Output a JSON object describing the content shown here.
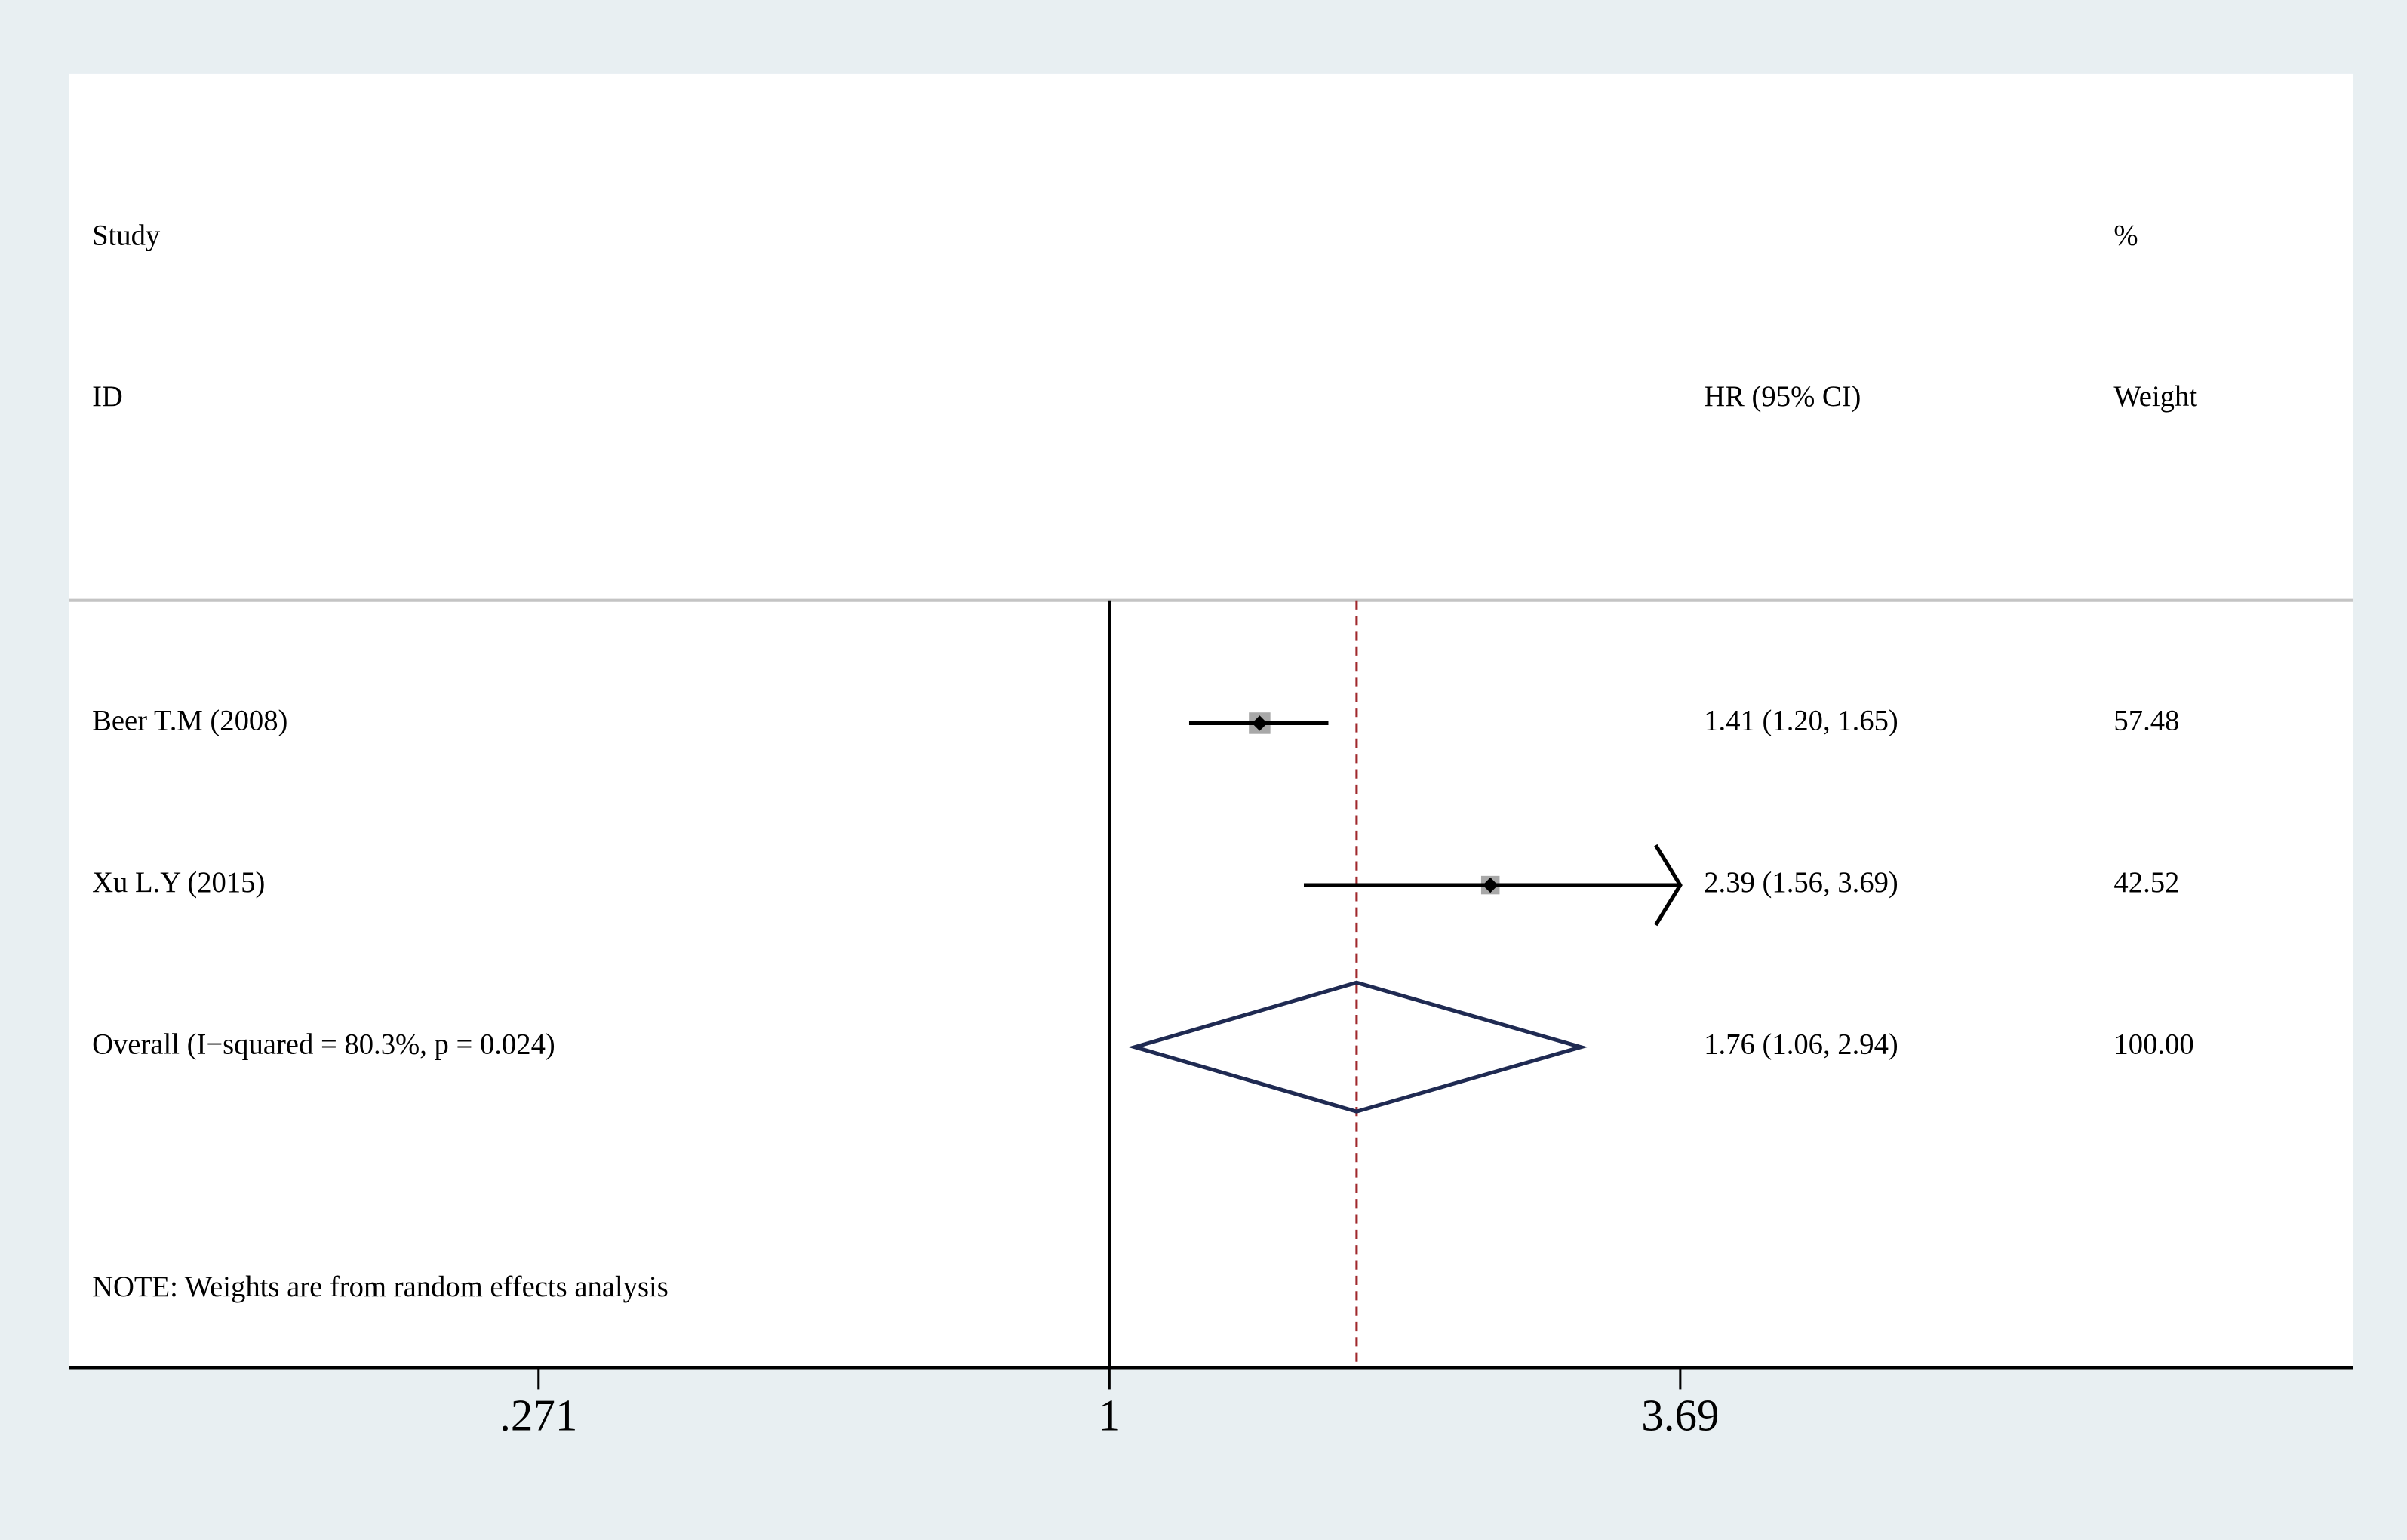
{
  "chart_data": {
    "type": "forest",
    "columns": {
      "study_top": "Study",
      "study": "ID",
      "effect": "HR (95% CI)",
      "weight_top": "%",
      "weight": "Weight"
    },
    "categories": [
      "Beer T.M  (2008)",
      "Xu L.Y (2015)",
      "Overall  (I−squared = 80.3%, p = 0.024)"
    ],
    "values": [
      1.41,
      2.39,
      1.76
    ],
    "ci_low": [
      1.2,
      1.56,
      1.06
    ],
    "ci_high": [
      1.65,
      3.69,
      2.94
    ],
    "value_labels": [
      "1.41 (1.20, 1.65)",
      "2.39 (1.56, 3.69)",
      "1.76 (1.06, 2.94)"
    ],
    "weights": [
      57.48,
      42.52,
      {
        "value": 100,
        "label": "100.00"
      }
    ],
    "note": "NOTE: Weights are from random effects analysis",
    "log_scale": true,
    "xlim": [
      0.0926,
      17.2
    ],
    "xticks": [
      {
        "value": 0.271,
        "label": ".271"
      },
      1,
      3.69
    ],
    "reference_line": 1,
    "colors": {
      "ci": "#000000",
      "square": "#a8a8a8",
      "point": "#000000",
      "diamond": "#1f2a52",
      "overall_line": "#a0282c"
    }
  }
}
